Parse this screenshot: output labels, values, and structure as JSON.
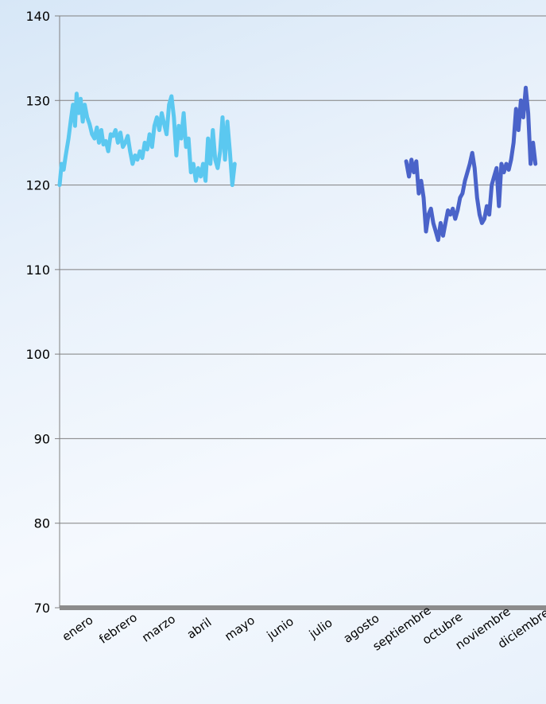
{
  "chart_data": {
    "type": "line",
    "title": "",
    "xlabel": "",
    "ylabel": "",
    "ylim": [
      70,
      140
    ],
    "yticks": [
      70,
      80,
      90,
      100,
      110,
      120,
      130,
      140
    ],
    "categories": [
      "enero",
      "febrero",
      "marzo",
      "abril",
      "mayo",
      "junio",
      "julio",
      "agosto",
      "septiembre",
      "octubre",
      "noviembre",
      "diciembre"
    ],
    "grid": "horizontal",
    "legend": "none",
    "series": [
      {
        "color": "#5bc8f0",
        "points": [
          [
            0.0,
            120.0
          ],
          [
            0.05,
            122.5
          ],
          [
            0.1,
            121.8
          ],
          [
            0.15,
            123.5
          ],
          [
            0.22,
            125.5
          ],
          [
            0.28,
            127.8
          ],
          [
            0.33,
            129.5
          ],
          [
            0.38,
            127.0
          ],
          [
            0.42,
            130.8
          ],
          [
            0.47,
            128.5
          ],
          [
            0.52,
            130.2
          ],
          [
            0.57,
            127.5
          ],
          [
            0.62,
            129.5
          ],
          [
            0.68,
            128.0
          ],
          [
            0.74,
            127.2
          ],
          [
            0.8,
            126.0
          ],
          [
            0.86,
            125.5
          ],
          [
            0.92,
            126.8
          ],
          [
            0.97,
            125.0
          ],
          [
            1.03,
            126.5
          ],
          [
            1.08,
            124.8
          ],
          [
            1.14,
            125.2
          ],
          [
            1.2,
            124.0
          ],
          [
            1.26,
            126.0
          ],
          [
            1.32,
            125.8
          ],
          [
            1.38,
            126.5
          ],
          [
            1.44,
            125.0
          ],
          [
            1.5,
            126.2
          ],
          [
            1.56,
            124.5
          ],
          [
            1.62,
            125.0
          ],
          [
            1.68,
            125.8
          ],
          [
            1.74,
            124.0
          ],
          [
            1.8,
            122.5
          ],
          [
            1.86,
            123.5
          ],
          [
            1.92,
            123.0
          ],
          [
            1.98,
            124.0
          ],
          [
            2.04,
            123.2
          ],
          [
            2.1,
            125.0
          ],
          [
            2.16,
            124.2
          ],
          [
            2.22,
            126.0
          ],
          [
            2.28,
            124.5
          ],
          [
            2.34,
            127.0
          ],
          [
            2.4,
            128.0
          ],
          [
            2.46,
            126.5
          ],
          [
            2.52,
            128.5
          ],
          [
            2.58,
            127.2
          ],
          [
            2.64,
            126.0
          ],
          [
            2.7,
            129.5
          ],
          [
            2.76,
            130.5
          ],
          [
            2.82,
            128.0
          ],
          [
            2.88,
            123.5
          ],
          [
            2.94,
            127.0
          ],
          [
            3.0,
            125.5
          ],
          [
            3.06,
            128.5
          ],
          [
            3.12,
            124.5
          ],
          [
            3.18,
            125.5
          ],
          [
            3.24,
            121.5
          ],
          [
            3.3,
            122.5
          ],
          [
            3.36,
            120.5
          ],
          [
            3.42,
            122.0
          ],
          [
            3.48,
            121.0
          ],
          [
            3.54,
            122.5
          ],
          [
            3.6,
            120.5
          ],
          [
            3.66,
            125.5
          ],
          [
            3.72,
            122.5
          ],
          [
            3.78,
            126.5
          ],
          [
            3.84,
            123.0
          ],
          [
            3.9,
            122.0
          ],
          [
            3.96,
            124.0
          ],
          [
            4.02,
            128.0
          ],
          [
            4.08,
            123.0
          ],
          [
            4.14,
            127.5
          ],
          [
            4.2,
            124.0
          ],
          [
            4.26,
            120.0
          ],
          [
            4.32,
            122.5
          ]
        ]
      },
      {
        "color": "#4a63c9",
        "points": [
          [
            8.55,
            122.8
          ],
          [
            8.62,
            121.0
          ],
          [
            8.68,
            123.0
          ],
          [
            8.74,
            121.5
          ],
          [
            8.8,
            122.8
          ],
          [
            8.86,
            119.0
          ],
          [
            8.92,
            120.5
          ],
          [
            8.98,
            118.5
          ],
          [
            9.04,
            114.5
          ],
          [
            9.1,
            116.5
          ],
          [
            9.16,
            117.2
          ],
          [
            9.22,
            115.5
          ],
          [
            9.28,
            114.5
          ],
          [
            9.34,
            113.5
          ],
          [
            9.4,
            115.5
          ],
          [
            9.46,
            114.0
          ],
          [
            9.52,
            115.5
          ],
          [
            9.58,
            117.0
          ],
          [
            9.64,
            116.5
          ],
          [
            9.7,
            117.2
          ],
          [
            9.76,
            116.0
          ],
          [
            9.82,
            117.0
          ],
          [
            9.88,
            118.5
          ],
          [
            9.94,
            119.0
          ],
          [
            10.0,
            120.5
          ],
          [
            10.06,
            121.5
          ],
          [
            10.12,
            122.5
          ],
          [
            10.18,
            123.8
          ],
          [
            10.24,
            122.0
          ],
          [
            10.3,
            118.5
          ],
          [
            10.36,
            116.5
          ],
          [
            10.42,
            115.5
          ],
          [
            10.48,
            116.0
          ],
          [
            10.54,
            117.5
          ],
          [
            10.6,
            116.5
          ],
          [
            10.66,
            120.0
          ],
          [
            10.72,
            121.0
          ],
          [
            10.78,
            122.0
          ],
          [
            10.84,
            117.5
          ],
          [
            10.9,
            122.5
          ],
          [
            10.96,
            121.5
          ],
          [
            11.02,
            122.5
          ],
          [
            11.08,
            121.8
          ],
          [
            11.14,
            123.0
          ],
          [
            11.2,
            125.0
          ],
          [
            11.26,
            129.0
          ],
          [
            11.32,
            126.5
          ],
          [
            11.38,
            130.0
          ],
          [
            11.44,
            128.0
          ],
          [
            11.5,
            131.5
          ],
          [
            11.56,
            128.5
          ],
          [
            11.62,
            122.5
          ],
          [
            11.68,
            125.0
          ],
          [
            11.74,
            122.5
          ]
        ]
      }
    ]
  }
}
